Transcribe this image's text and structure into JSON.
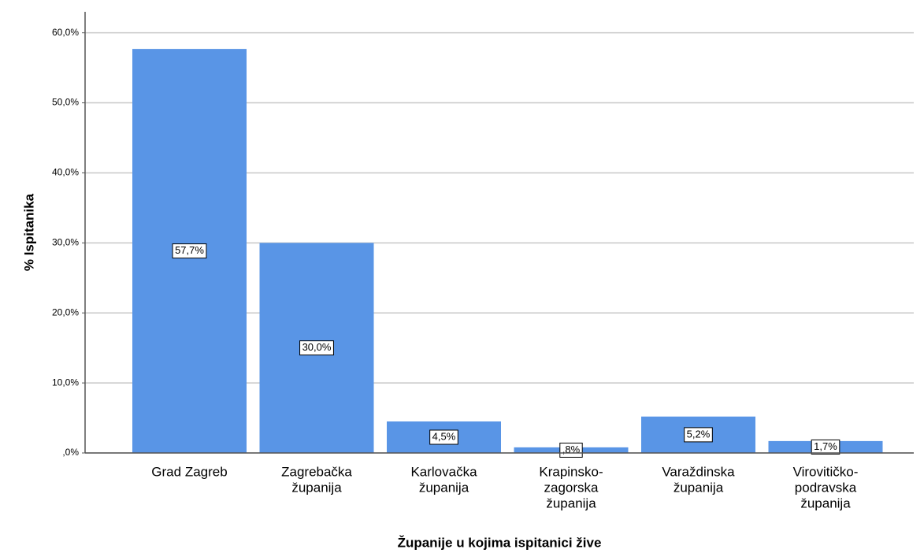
{
  "chart_data": {
    "type": "bar",
    "x_label": "Županije u kojima ispitanici žive",
    "y_label": "% Ispitanika",
    "categories": [
      [
        "Grad Zagreb"
      ],
      [
        "Zagrebačka",
        "županija"
      ],
      [
        "Karlovačka",
        "županija"
      ],
      [
        "Krapinsko-",
        "zagorska",
        "županija"
      ],
      [
        "Varaždinska",
        "županija"
      ],
      [
        "Virovitičko-",
        "podravska",
        "županija"
      ]
    ],
    "values": [
      57.7,
      30.0,
      4.5,
      0.8,
      5.2,
      1.7
    ],
    "value_labels": [
      "57,7%",
      "30,0%",
      "4,5%",
      ",8%",
      "5,2%",
      "1,7%"
    ],
    "color": "#5995e6",
    "ylim": [
      0,
      63
    ],
    "yticks": [
      {
        "value": 0,
        "label": ",0%"
      },
      {
        "value": 10,
        "label": "10,0%"
      },
      {
        "value": 20,
        "label": "20,0%"
      },
      {
        "value": 30,
        "label": "30,0%"
      },
      {
        "value": 40,
        "label": "40,0%"
      },
      {
        "value": 50,
        "label": "50,0%"
      },
      {
        "value": 60,
        "label": "60,0%"
      }
    ],
    "grid": true
  }
}
